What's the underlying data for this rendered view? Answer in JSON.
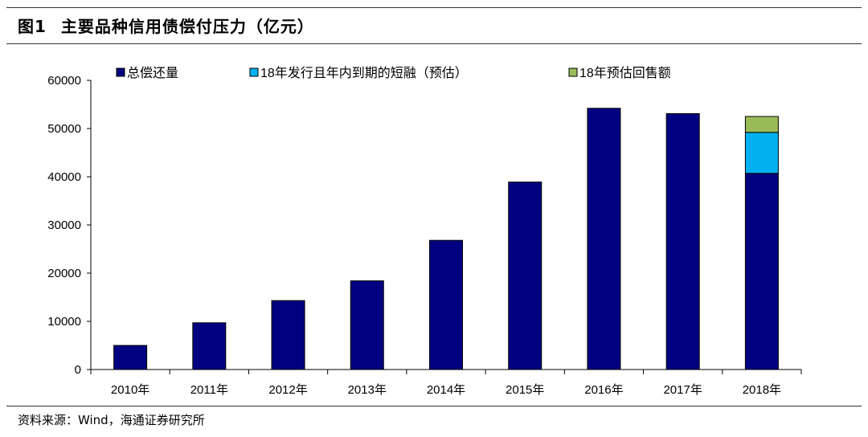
{
  "figure": {
    "number": "图1",
    "title": "主要品种信用债偿付压力（亿元）"
  },
  "source": "资料来源：Wind，海通证券研究所",
  "colors": {
    "series_total": "#000080",
    "series_short": "#00B0F0",
    "series_putback": "#9BBB59"
  },
  "chart_data": {
    "type": "bar",
    "stacked": true,
    "categories": [
      "2010年",
      "2011年",
      "2012年",
      "2013年",
      "2014年",
      "2015年",
      "2016年",
      "2017年",
      "2018年"
    ],
    "series": [
      {
        "name": "总偿还量",
        "values": [
          5000,
          9700,
          14300,
          18400,
          26800,
          38900,
          54200,
          53100,
          40700
        ]
      },
      {
        "name": "18年发行且年内到期的短融（预估）",
        "values": [
          0,
          0,
          0,
          0,
          0,
          0,
          0,
          0,
          8500
        ]
      },
      {
        "name": "18年预估回售额",
        "values": [
          0,
          0,
          0,
          0,
          0,
          0,
          0,
          0,
          3300
        ]
      }
    ],
    "y_ticks": [
      "0",
      "10000",
      "20000",
      "30000",
      "40000",
      "50000",
      "60000"
    ],
    "ylim": [
      0,
      60000
    ],
    "grid": false,
    "legend_position": "top"
  }
}
